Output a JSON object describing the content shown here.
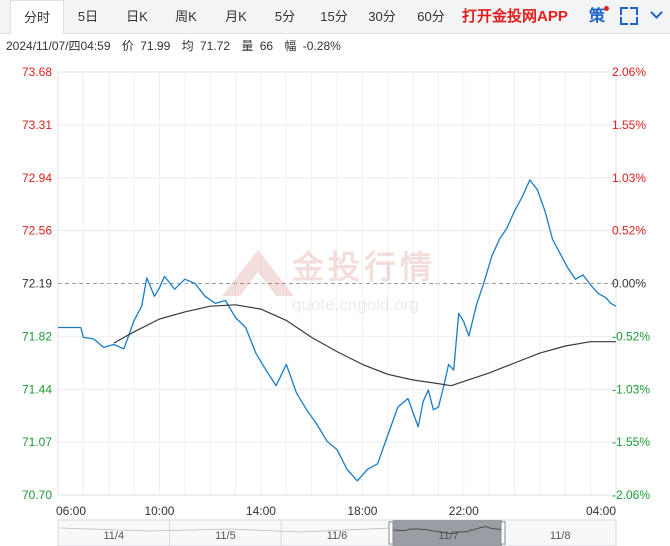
{
  "tabs": [
    {
      "label": "分时",
      "active": true
    },
    {
      "label": "5日",
      "active": false
    },
    {
      "label": "日K",
      "active": false
    },
    {
      "label": "周K",
      "active": false
    },
    {
      "label": "月K",
      "active": false
    },
    {
      "label": "5分",
      "active": false
    },
    {
      "label": "15分",
      "active": false
    },
    {
      "label": "30分",
      "active": false
    },
    {
      "label": "60分",
      "active": false
    }
  ],
  "promo_label": "打开金投网APP",
  "strategy_label": "策",
  "info": {
    "datetime": "2024/11/07/四04:59",
    "price_label": "价",
    "price": "71.99",
    "avg_label": "均",
    "avg": "71.72",
    "volume_label": "量",
    "volume": "66",
    "change_label": "幅",
    "change": "-0.28%"
  },
  "watermark": {
    "brand": "金投行情",
    "url": "quote.cngold.org"
  },
  "colors": {
    "up": "#e0201d",
    "down": "#1a9a36",
    "price_line": "#1a7dc4",
    "avg_line": "#3a3a3a",
    "accent": "#1e63c6"
  },
  "chart_data": {
    "type": "line",
    "title": "",
    "xlabel": "",
    "ylabel": "",
    "ylim": [
      70.7,
      73.68
    ],
    "pct_ylim": [
      -2.06,
      2.06
    ],
    "baseline": 72.19,
    "y_ticks": [
      "73.68",
      "73.31",
      "72.94",
      "72.56",
      "72.19",
      "71.82",
      "71.44",
      "71.07",
      "70.70"
    ],
    "pct_ticks": [
      "2.06%",
      "1.55%",
      "1.03%",
      "0.52%",
      "0.00%",
      "-0.52%",
      "-1.03%",
      "-1.55%",
      "-2.06%"
    ],
    "x_ticks": [
      "06:00",
      "10:00",
      "14:00",
      "18:00",
      "22:00",
      "04:00"
    ],
    "x_range_hours": [
      0,
      22
    ],
    "grid": true,
    "series": [
      {
        "name": "",
        "role": "price",
        "x": [
          0,
          0.9,
          1.0,
          1.4,
          1.8,
          2.2,
          2.6,
          3.0,
          3.3,
          3.5,
          3.8,
          4.0,
          4.2,
          4.6,
          5.0,
          5.4,
          5.8,
          6.2,
          6.6,
          7.0,
          7.4,
          7.8,
          8.2,
          8.6,
          9.0,
          9.4,
          9.8,
          10.2,
          10.6,
          11.0,
          11.4,
          11.8,
          12.2,
          12.6,
          13.0,
          13.4,
          13.8,
          14.2,
          14.4,
          14.6,
          14.8,
          15.0,
          15.2,
          15.4,
          15.6,
          15.8,
          16.0,
          16.2,
          16.5,
          16.8,
          17.1,
          17.4,
          17.7,
          18.0,
          18.3,
          18.6,
          18.9,
          19.2,
          19.5,
          19.8,
          20.1,
          20.4,
          20.7,
          21.0,
          21.3,
          21.6,
          21.8,
          22.0
        ],
        "y": [
          71.88,
          71.88,
          71.81,
          71.8,
          71.74,
          71.76,
          71.73,
          71.93,
          72.03,
          72.23,
          72.1,
          72.16,
          72.24,
          72.15,
          72.22,
          72.19,
          72.1,
          72.05,
          72.07,
          71.95,
          71.88,
          71.7,
          71.58,
          71.47,
          71.62,
          71.42,
          71.3,
          71.2,
          71.08,
          71.02,
          70.88,
          70.8,
          70.88,
          70.92,
          71.12,
          71.32,
          71.38,
          71.18,
          71.36,
          71.44,
          71.3,
          71.32,
          71.46,
          71.62,
          71.58,
          71.98,
          71.92,
          71.82,
          72.04,
          72.2,
          72.38,
          72.5,
          72.58,
          72.7,
          72.8,
          72.92,
          72.85,
          72.7,
          72.5,
          72.4,
          72.3,
          72.22,
          72.25,
          72.18,
          72.12,
          72.09,
          72.05,
          72.03
        ]
      },
      {
        "name": "",
        "role": "average",
        "x": [
          2.2,
          3.0,
          4.0,
          5.0,
          6.0,
          7.0,
          8.0,
          9.0,
          10.0,
          11.0,
          12.0,
          13.0,
          14.0,
          14.8,
          15.5,
          16.0,
          17.0,
          18.0,
          19.0,
          20.0,
          21.0,
          22.0
        ],
        "y": [
          71.77,
          71.85,
          71.94,
          71.99,
          72.03,
          72.04,
          72.01,
          71.93,
          71.81,
          71.71,
          71.62,
          71.55,
          71.51,
          71.49,
          71.47,
          71.5,
          71.56,
          71.63,
          71.7,
          71.75,
          71.78,
          71.78
        ]
      }
    ]
  },
  "navigator": {
    "days": [
      "11/4",
      "11/5",
      "11/6",
      "11/7",
      "11/8"
    ]
  }
}
